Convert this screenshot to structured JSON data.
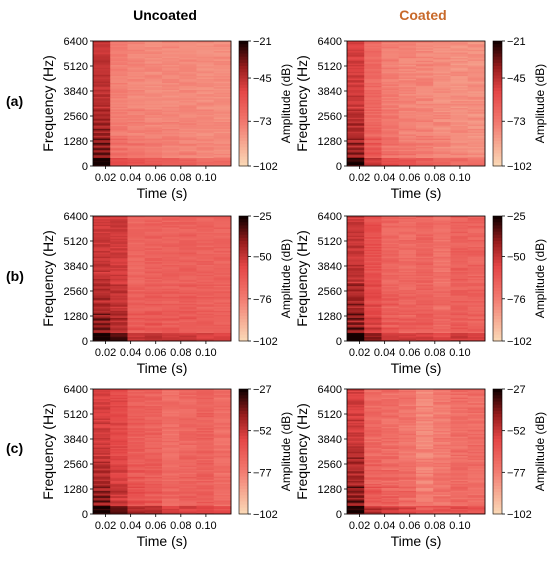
{
  "figure": {
    "columns": [
      {
        "title": "Uncoated",
        "color": "#000000"
      },
      {
        "title": "Coated",
        "color": "#c8692a"
      }
    ],
    "rows": [
      "(a)",
      "(b)",
      "(c)"
    ]
  },
  "chart_data": [
    {
      "type": "heatmap",
      "panel": "(a) Uncoated",
      "x": [
        0.02,
        0.04,
        0.06,
        0.08,
        0.1
      ],
      "xlabel": "Time (s)",
      "y": [
        0,
        1280,
        2560,
        3840,
        5120,
        6400
      ],
      "ylabel": "Frequency (Hz)",
      "ylim": [
        0,
        6400
      ],
      "colorbar": {
        "label": "Amplitude (dB)",
        "ticks": [
          -21,
          -45,
          -73,
          -102
        ],
        "range": [
          -102,
          -21
        ]
      },
      "profile": [
        -40,
        -76,
        -78,
        -79,
        -79,
        -79,
        -80,
        -80
      ],
      "noise": 0.35
    },
    {
      "type": "heatmap",
      "panel": "(a) Coated",
      "x": [
        0.02,
        0.04,
        0.06,
        0.08,
        0.1
      ],
      "xlabel": "Time (s)",
      "y": [
        0,
        1280,
        2560,
        3840,
        5120,
        6400
      ],
      "ylabel": "Frequency (Hz)",
      "ylim": [
        0,
        6400
      ],
      "colorbar": {
        "label": "Amplitude (dB)",
        "ticks": [
          -21,
          -45,
          -73,
          -102
        ],
        "range": [
          -102,
          -21
        ]
      },
      "profile": [
        -44,
        -68,
        -75,
        -78,
        -78,
        -80,
        -81,
        -81
      ],
      "noise": 0.45
    },
    {
      "type": "heatmap",
      "panel": "(b) Uncoated",
      "x": [
        0.02,
        0.04,
        0.06,
        0.08,
        0.1
      ],
      "xlabel": "Time (s)",
      "y": [
        0,
        1280,
        2560,
        3840,
        5120,
        6400
      ],
      "ylabel": "Frequency (Hz)",
      "ylim": [
        0,
        6400
      ],
      "colorbar": {
        "label": "Amplitude (dB)",
        "ticks": [
          -25,
          -50,
          -76,
          -102
        ],
        "range": [
          -102,
          -25
        ]
      },
      "profile": [
        -45,
        -52,
        -68,
        -66,
        -67,
        -66,
        -67,
        -67
      ],
      "noise": 0.4
    },
    {
      "type": "heatmap",
      "panel": "(b) Coated",
      "x": [
        0.02,
        0.04,
        0.06,
        0.08,
        0.1
      ],
      "xlabel": "Time (s)",
      "y": [
        0,
        1280,
        2560,
        3840,
        5120,
        6400
      ],
      "ylabel": "Frequency (Hz)",
      "ylim": [
        0,
        6400
      ],
      "colorbar": {
        "label": "Amplitude (dB)",
        "ticks": [
          -25,
          -50,
          -76,
          -102
        ],
        "range": [
          -102,
          -25
        ]
      },
      "profile": [
        -44,
        -60,
        -68,
        -70,
        -68,
        -72,
        -66,
        -67
      ],
      "noise": 0.5
    },
    {
      "type": "heatmap",
      "panel": "(c) Uncoated",
      "x": [
        0.02,
        0.04,
        0.06,
        0.08,
        0.1
      ],
      "xlabel": "Time (s)",
      "y": [
        0,
        1280,
        2560,
        3840,
        5120,
        6400
      ],
      "ylabel": "Frequency (Hz)",
      "ylim": [
        0,
        6400
      ],
      "colorbar": {
        "label": "Amplitude (dB)",
        "ticks": [
          -27,
          -52,
          -77,
          -102
        ],
        "range": [
          -102,
          -27
        ]
      },
      "profile": [
        -48,
        -58,
        -66,
        -68,
        -72,
        -70,
        -68,
        -72
      ],
      "noise": 0.45
    },
    {
      "type": "heatmap",
      "panel": "(c) Coated",
      "x": [
        0.02,
        0.04,
        0.06,
        0.08,
        0.1
      ],
      "xlabel": "Time (s)",
      "y": [
        0,
        1280,
        2560,
        3840,
        5120,
        6400
      ],
      "ylabel": "Frequency (Hz)",
      "ylim": [
        0,
        6400
      ],
      "colorbar": {
        "label": "Amplitude (dB)",
        "ticks": [
          -27,
          -52,
          -77,
          -102
        ],
        "range": [
          -102,
          -27
        ]
      },
      "profile": [
        -46,
        -70,
        -72,
        -74,
        -80,
        -76,
        -72,
        -72
      ],
      "noise": 0.55
    }
  ]
}
